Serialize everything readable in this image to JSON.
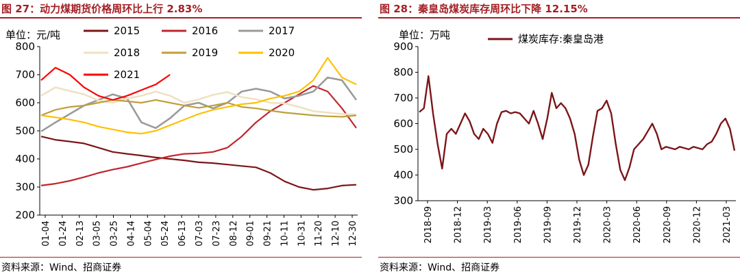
{
  "colors": {
    "accent": "#a31f24",
    "s2015": "#7b1518",
    "s2016": "#c0262b",
    "s2017": "#9a9a9a",
    "s2018": "#efe1c2",
    "s2019": "#bf9e3a",
    "s2020": "#ffc000",
    "s2021": "#ff0000"
  },
  "left": {
    "title": "图 27：动力煤期货价格周环比上行 2.83%",
    "source": "资料来源：Wind、招商证券",
    "chart_data": {
      "type": "line",
      "unit_label": "单位：元/吨",
      "ylim": [
        200,
        800
      ],
      "yticks": [
        "800",
        "700",
        "600",
        "500",
        "400",
        "300",
        "200"
      ],
      "x_ticks": [
        "01-04",
        "01-24",
        "02-13",
        "03-05",
        "03-25",
        "04-14",
        "05-04",
        "05-24",
        "06-13",
        "07-03",
        "07-23",
        "08-12",
        "09-01",
        "09-21",
        "10-11",
        "10-31",
        "11-20",
        "12-10",
        "12-30"
      ],
      "legend_position": "top",
      "series": [
        {
          "name": "2015",
          "color": "#7b1518",
          "values": [
            480,
            468,
            462,
            455,
            440,
            425,
            418,
            412,
            405,
            400,
            395,
            388,
            385,
            380,
            375,
            370,
            350,
            320,
            300,
            290,
            295,
            305,
            308
          ]
        },
        {
          "name": "2016",
          "color": "#c0262b",
          "values": [
            305,
            312,
            322,
            335,
            350,
            362,
            372,
            385,
            398,
            410,
            418,
            420,
            425,
            440,
            480,
            530,
            570,
            600,
            630,
            660,
            640,
            580,
            510
          ]
        },
        {
          "name": "2017",
          "color": "#9a9a9a",
          "values": [
            498,
            530,
            560,
            590,
            610,
            630,
            615,
            530,
            510,
            545,
            590,
            600,
            580,
            600,
            640,
            650,
            640,
            615,
            625,
            640,
            690,
            680,
            610
          ]
        },
        {
          "name": "2018",
          "color": "#efe1c2",
          "values": [
            625,
            655,
            642,
            630,
            608,
            600,
            615,
            625,
            640,
            625,
            600,
            612,
            628,
            638,
            620,
            612,
            600,
            598,
            585,
            570,
            565,
            560,
            558
          ]
        },
        {
          "name": "2019",
          "color": "#bf9e3a",
          "values": [
            555,
            575,
            585,
            590,
            600,
            610,
            605,
            600,
            610,
            600,
            590,
            582,
            590,
            600,
            585,
            580,
            572,
            565,
            560,
            555,
            552,
            550,
            555
          ]
        },
        {
          "name": "2020",
          "color": "#ffc000",
          "values": [
            555,
            548,
            540,
            530,
            515,
            505,
            495,
            490,
            500,
            520,
            540,
            560,
            575,
            585,
            595,
            600,
            615,
            625,
            640,
            680,
            760,
            690,
            665
          ]
        },
        {
          "name": "2021",
          "color": "#ff0000",
          "values": [
            680,
            725,
            700,
            655,
            625,
            610,
            625,
            645,
            665,
            700
          ]
        }
      ]
    }
  },
  "right": {
    "title": "图 28：秦皇岛煤炭库存周环比下降 12.15%",
    "source": "资料来源：Wind、招商证券",
    "chart_data": {
      "type": "line",
      "unit_label": "单位：万吨",
      "ylim": [
        300,
        900
      ],
      "yticks": [
        "900",
        "800",
        "700",
        "600",
        "500",
        "400",
        "300"
      ],
      "x_ticks": [
        "2018-09",
        "2018-12",
        "2019-03",
        "2019-06",
        "2019-09",
        "2019-12",
        "2020-03",
        "2020-06",
        "2020-09",
        "2020-12",
        "2021-03"
      ],
      "legend_position": "top",
      "series": [
        {
          "name": "煤炭库存:秦皇岛港",
          "color": "#7b1518",
          "values": [
            645,
            660,
            785,
            640,
            520,
            425,
            560,
            580,
            560,
            600,
            640,
            610,
            560,
            540,
            580,
            560,
            525,
            600,
            645,
            650,
            640,
            645,
            640,
            620,
            600,
            650,
            600,
            540,
            620,
            720,
            660,
            680,
            660,
            620,
            560,
            460,
            400,
            440,
            550,
            650,
            660,
            690,
            640,
            520,
            420,
            380,
            430,
            500,
            520,
            540,
            570,
            600,
            560,
            500,
            510,
            505,
            500,
            510,
            505,
            500,
            510,
            505,
            500,
            520,
            530,
            560,
            600,
            620,
            580,
            495
          ]
        }
      ]
    }
  }
}
